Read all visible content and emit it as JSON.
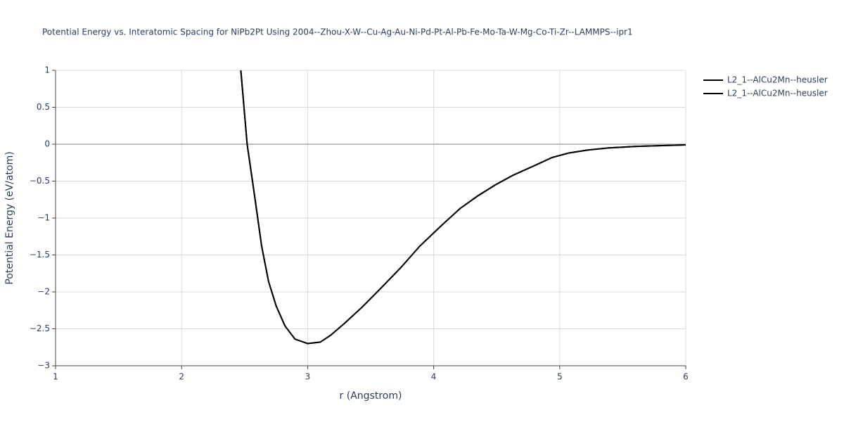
{
  "chart_data": {
    "type": "line",
    "title": "Potential Energy vs. Interatomic Spacing for NiPb2Pt Using 2004--Zhou-X-W--Cu-Ag-Au-Ni-Pd-Pt-Al-Pb-Fe-Mo-Ta-W-Mg-Co-Ti-Zr--LAMMPS--ipr1",
    "xlabel": "r (Angstrom)",
    "ylabel": "Potential Energy (eV/atom)",
    "x": [
      2.47,
      2.52,
      2.58,
      2.635,
      2.69,
      2.75,
      2.82,
      2.9,
      3.0,
      3.1,
      3.18,
      3.29,
      3.43,
      3.57,
      3.74,
      3.89,
      4.05,
      4.21,
      4.35,
      4.49,
      4.63,
      4.8,
      4.94,
      5.07,
      5.22,
      5.39,
      5.61,
      6.0
    ],
    "series": [
      {
        "name": "L2_1--AlCu2Mn--heusler",
        "color": "#000000",
        "values": [
          1.0,
          0.0,
          -0.71,
          -1.38,
          -1.86,
          -2.19,
          -2.46,
          -2.64,
          -2.7,
          -2.68,
          -2.59,
          -2.43,
          -2.21,
          -1.97,
          -1.67,
          -1.38,
          -1.12,
          -0.87,
          -0.7,
          -0.55,
          -0.42,
          -0.29,
          -0.18,
          -0.12,
          -0.08,
          -0.05,
          -0.03,
          -0.01
        ]
      },
      {
        "name": "L2_1--AlCu2Mn--heusler",
        "color": "#000000",
        "values": [
          1.0,
          0.0,
          -0.71,
          -1.38,
          -1.86,
          -2.19,
          -2.46,
          -2.64,
          -2.7,
          -2.68,
          -2.59,
          -2.43,
          -2.21,
          -1.97,
          -1.67,
          -1.38,
          -1.12,
          -0.87,
          -0.7,
          -0.55,
          -0.42,
          -0.29,
          -0.18,
          -0.12,
          -0.08,
          -0.05,
          -0.03,
          -0.01
        ]
      }
    ],
    "xlim": [
      1,
      6
    ],
    "xticks": [
      1,
      2,
      3,
      4,
      5,
      6
    ],
    "ylim": [
      -3,
      1
    ],
    "yticks": [
      {
        "value": -3,
        "label": "−3"
      },
      {
        "value": -2.5,
        "label": "−2.5"
      },
      {
        "value": -2,
        "label": "−2"
      },
      {
        "value": -1.5,
        "label": "−1.5"
      },
      {
        "value": -1,
        "label": "−1"
      },
      {
        "value": -0.5,
        "label": "−0.5"
      },
      0,
      0.5,
      1
    ],
    "grid": true,
    "legend": "top-right"
  }
}
